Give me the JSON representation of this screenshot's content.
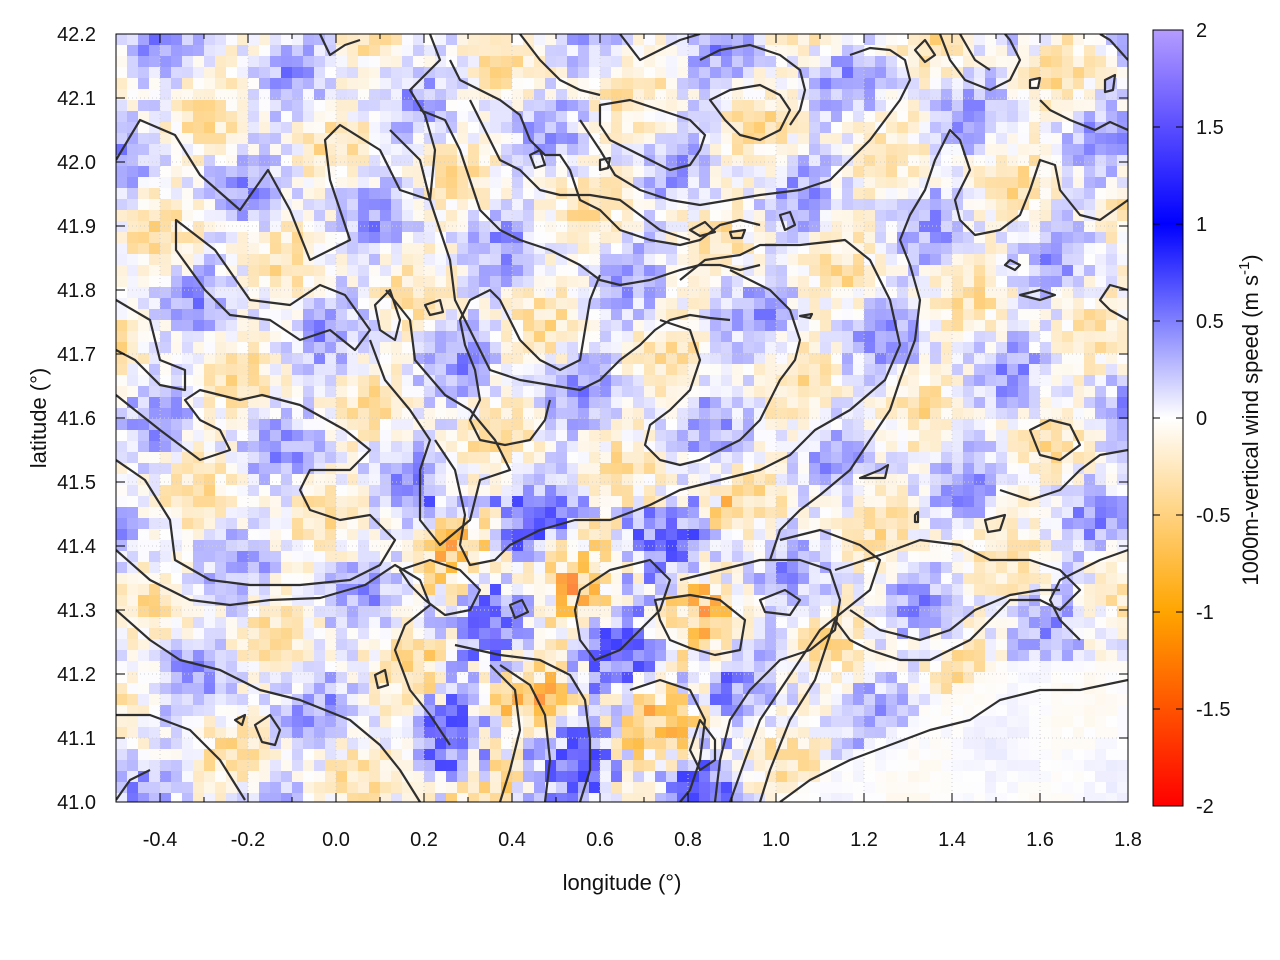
{
  "chart_data": {
    "type": "heatmap",
    "xlabel": "longitude (°)",
    "ylabel": "latitude (°)",
    "colorbar_label": "1000m-vertical wind speed (m s",
    "colorbar_label_sup": "-1",
    "colorbar_label_end": ")",
    "xlim": [
      -0.5,
      1.8
    ],
    "ylim": [
      41.0,
      42.2
    ],
    "clim": [
      -2,
      2
    ],
    "x_ticks": [
      "-0.4",
      "-0.2",
      "0.0",
      "0.2",
      "0.4",
      "0.6",
      "0.8",
      "1.0",
      "1.2",
      "1.4",
      "1.6",
      "1.8"
    ],
    "x_tick_values": [
      -0.4,
      -0.2,
      0.0,
      0.2,
      0.4,
      0.6,
      0.8,
      1.0,
      1.2,
      1.4,
      1.6,
      1.8
    ],
    "y_ticks": [
      "41.0",
      "41.1",
      "41.2",
      "41.3",
      "41.4",
      "41.5",
      "41.6",
      "41.7",
      "41.8",
      "41.9",
      "42.0",
      "42.1",
      "42.2"
    ],
    "y_tick_values": [
      41.0,
      41.1,
      41.2,
      41.3,
      41.4,
      41.5,
      41.6,
      41.7,
      41.8,
      41.9,
      42.0,
      42.1,
      42.2
    ],
    "colorbar_ticks": [
      "2",
      "1.5",
      "1",
      "0.5",
      "0",
      "-0.5",
      "-1",
      "-1.5",
      "-2"
    ],
    "colorbar_tick_values": [
      2,
      1.5,
      1,
      0.5,
      0,
      -0.5,
      -1,
      -1.5,
      -2
    ],
    "colormap": [
      {
        "value": -2.0,
        "color": "#ff0000"
      },
      {
        "value": -1.0,
        "color": "#ffa500"
      },
      {
        "value": 0.0,
        "color": "#ffffff"
      },
      {
        "value": 1.0,
        "color": "#0000ff"
      },
      {
        "value": 2.0,
        "color": "#b49cff"
      }
    ],
    "grid": true,
    "overlay": "terrain height contour lines (black)"
  }
}
